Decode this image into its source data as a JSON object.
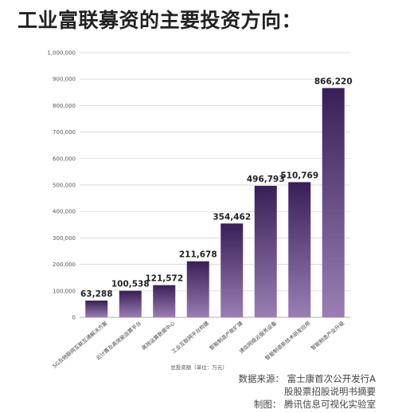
{
  "title": "工业富联募资的主要投资方向：",
  "chart_data": {
    "type": "bar",
    "categories": [
      "5G及物联网互联互通解决方案",
      "云计算及高效能运算平台",
      "高效运算数据中心",
      "工业互联网平台构建",
      "智能制造产能扩建",
      "通信网络云服务设备",
      "智能制造新技术研发应用",
      "智能制造产业升级"
    ],
    "values": [
      63288,
      100538,
      121572,
      211678,
      354462,
      496793,
      510769,
      866220
    ],
    "value_labels": [
      "63,288",
      "100,538",
      "121,572",
      "211,678",
      "354,462",
      "496,793",
      "510,769",
      "866,220"
    ],
    "ylim": [
      0,
      1000000
    ],
    "yticks": [
      "0",
      "100,000",
      "200,000",
      "300,000",
      "400,000",
      "500,000",
      "600,000",
      "700,000",
      "800,000",
      "900,000",
      "1,000,000"
    ],
    "xlabel": "总投资额（单位：万元）",
    "grid": true,
    "bar_color_top": "#3a1e57",
    "bar_color_bottom": "#9a7fb3"
  },
  "source": {
    "line1": "数据来源：  富士康首次公开发行A",
    "line2": "股股票招股说明书摘要",
    "line3": "制图：  腾讯信息可视化实验室"
  }
}
